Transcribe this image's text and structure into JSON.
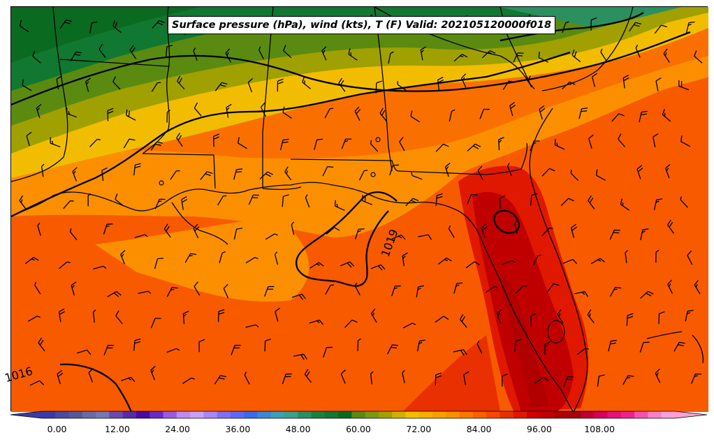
{
  "title": "Surface pressure (hPa), wind (kts), T (F) Valid: 202105120000f018",
  "colorbar": {
    "tick_labels": [
      "0.00",
      "12.00",
      "24.00",
      "36.00",
      "48.00",
      "60.00",
      "72.00",
      "84.00",
      "96.00",
      "108.00"
    ],
    "min": -3,
    "max": 123,
    "step": 3,
    "extend": "both",
    "colors": [
      "#3a3aa8",
      "#4a4aa0",
      "#57579c",
      "#6a6aa8",
      "#7777b4",
      "#6a4ab0",
      "#5a2aa8",
      "#4a0aa0",
      "#6a2ac8",
      "#9a5ae0",
      "#c08af0",
      "#c8a0f8",
      "#a888f8",
      "#8070f8",
      "#5a6af8",
      "#3a6af0",
      "#3a88d8",
      "#3aa0b8",
      "#3aa090",
      "#2a9060",
      "#1a8040",
      "#107830",
      "#0a6a20",
      "#5a8a10",
      "#7a9a10",
      "#a0a000",
      "#d0b000",
      "#f0c000",
      "#f4b000",
      "#f8a000",
      "#f89000",
      "#f87800",
      "#f86000",
      "#f84800",
      "#e83000",
      "#e01800",
      "#d00000",
      "#c00000",
      "#b00000",
      "#a8000a",
      "#c00030",
      "#d8005a",
      "#e8107a",
      "#f02090",
      "#f850b0",
      "#f880c8",
      "#f8a0d8"
    ]
  },
  "map_annotations": {
    "isobar_labels": [
      "1019",
      "1016"
    ]
  },
  "legend_colors": {
    "hot": "#cc0000",
    "warm": "#f85a00",
    "mild": "#fb8f00",
    "cool": "#f2bd00",
    "cold": "#0b6b1c"
  }
}
